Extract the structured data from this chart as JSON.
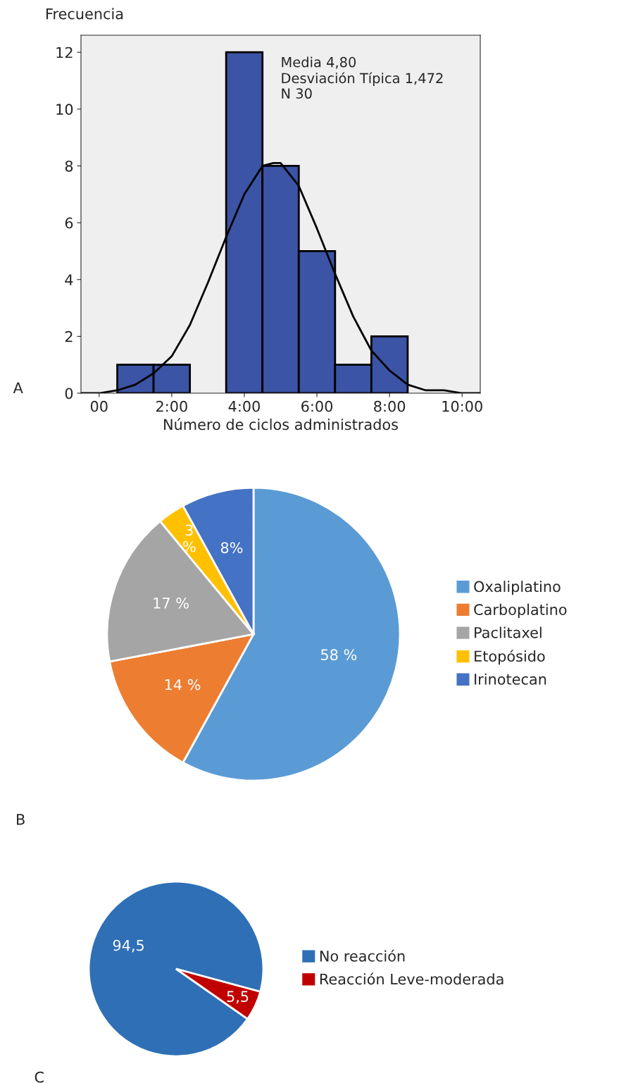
{
  "chart_data": [
    {
      "type": "histogram",
      "xlabel": "Número de ciclos administrados",
      "ylabel": "Frecuencia",
      "bins": [
        0.5,
        1.5,
        2.5,
        3.5,
        4.5,
        5.5,
        6.5,
        7.5,
        8.5
      ],
      "values": [
        1,
        1,
        0,
        12,
        8,
        5,
        1,
        2
      ],
      "color": "#3b54a5",
      "series": [
        {
          "type": "line",
          "color": "#000000",
          "x": [
            -0.5,
            0,
            0.5,
            1,
            1.5,
            2,
            2.5,
            3,
            3.5,
            4,
            4.5,
            4.8,
            5,
            5.5,
            6,
            6.5,
            7,
            7.5,
            8,
            8.5,
            9,
            9.5,
            10,
            10.5
          ],
          "values": [
            0.0,
            0.0,
            0.1,
            0.3,
            0.7,
            1.3,
            2.4,
            3.9,
            5.5,
            7.0,
            8.0,
            8.1,
            8.1,
            7.3,
            5.8,
            4.2,
            2.7,
            1.5,
            0.8,
            0.3,
            0.1,
            0.1,
            0.0,
            0.0
          ]
        }
      ],
      "xlim": [
        -0.5,
        10.5
      ],
      "ylim": [
        0,
        12.6
      ],
      "xticks": [
        {
          "value": 0,
          "label": "00"
        },
        {
          "value": 2,
          "label": "2:00"
        },
        {
          "value": 4,
          "label": "4:00"
        },
        {
          "value": 6,
          "label": "6:00"
        },
        {
          "value": 8,
          "label": "8:00"
        },
        {
          "value": 10,
          "label": "10:00"
        }
      ],
      "yticks": [
        0,
        2,
        4,
        6,
        8,
        10,
        12
      ],
      "grid": false,
      "annotations": [
        "Media 4,80\nDesviación Típica 1,472\nN 30",
        "A"
      ]
    },
    {
      "type": "pie",
      "categories": [
        "Oxaliplatino",
        "Carboplatino",
        "Paclitaxel",
        "Etopósido",
        "Irinotecan"
      ],
      "values": [
        58,
        14,
        17,
        3,
        8
      ],
      "colors": [
        "#5b9bd5",
        "#ed7d31",
        "#a5a5a5",
        "#ffc000",
        "#4472c4"
      ],
      "value_labels": [
        "58 %",
        "14 %",
        "17 %",
        "3\n%",
        "8%"
      ],
      "legend": "right",
      "annotations": [
        "B"
      ]
    },
    {
      "type": "pie",
      "categories": [
        "No reacción",
        "Reacción Leve-moderada"
      ],
      "values": [
        94.5,
        5.5
      ],
      "colors": [
        "#2f6fb6",
        "#c00000"
      ],
      "value_labels": [
        "94,5",
        "5,5"
      ],
      "legend": "right",
      "annotations": [
        "C"
      ]
    }
  ]
}
